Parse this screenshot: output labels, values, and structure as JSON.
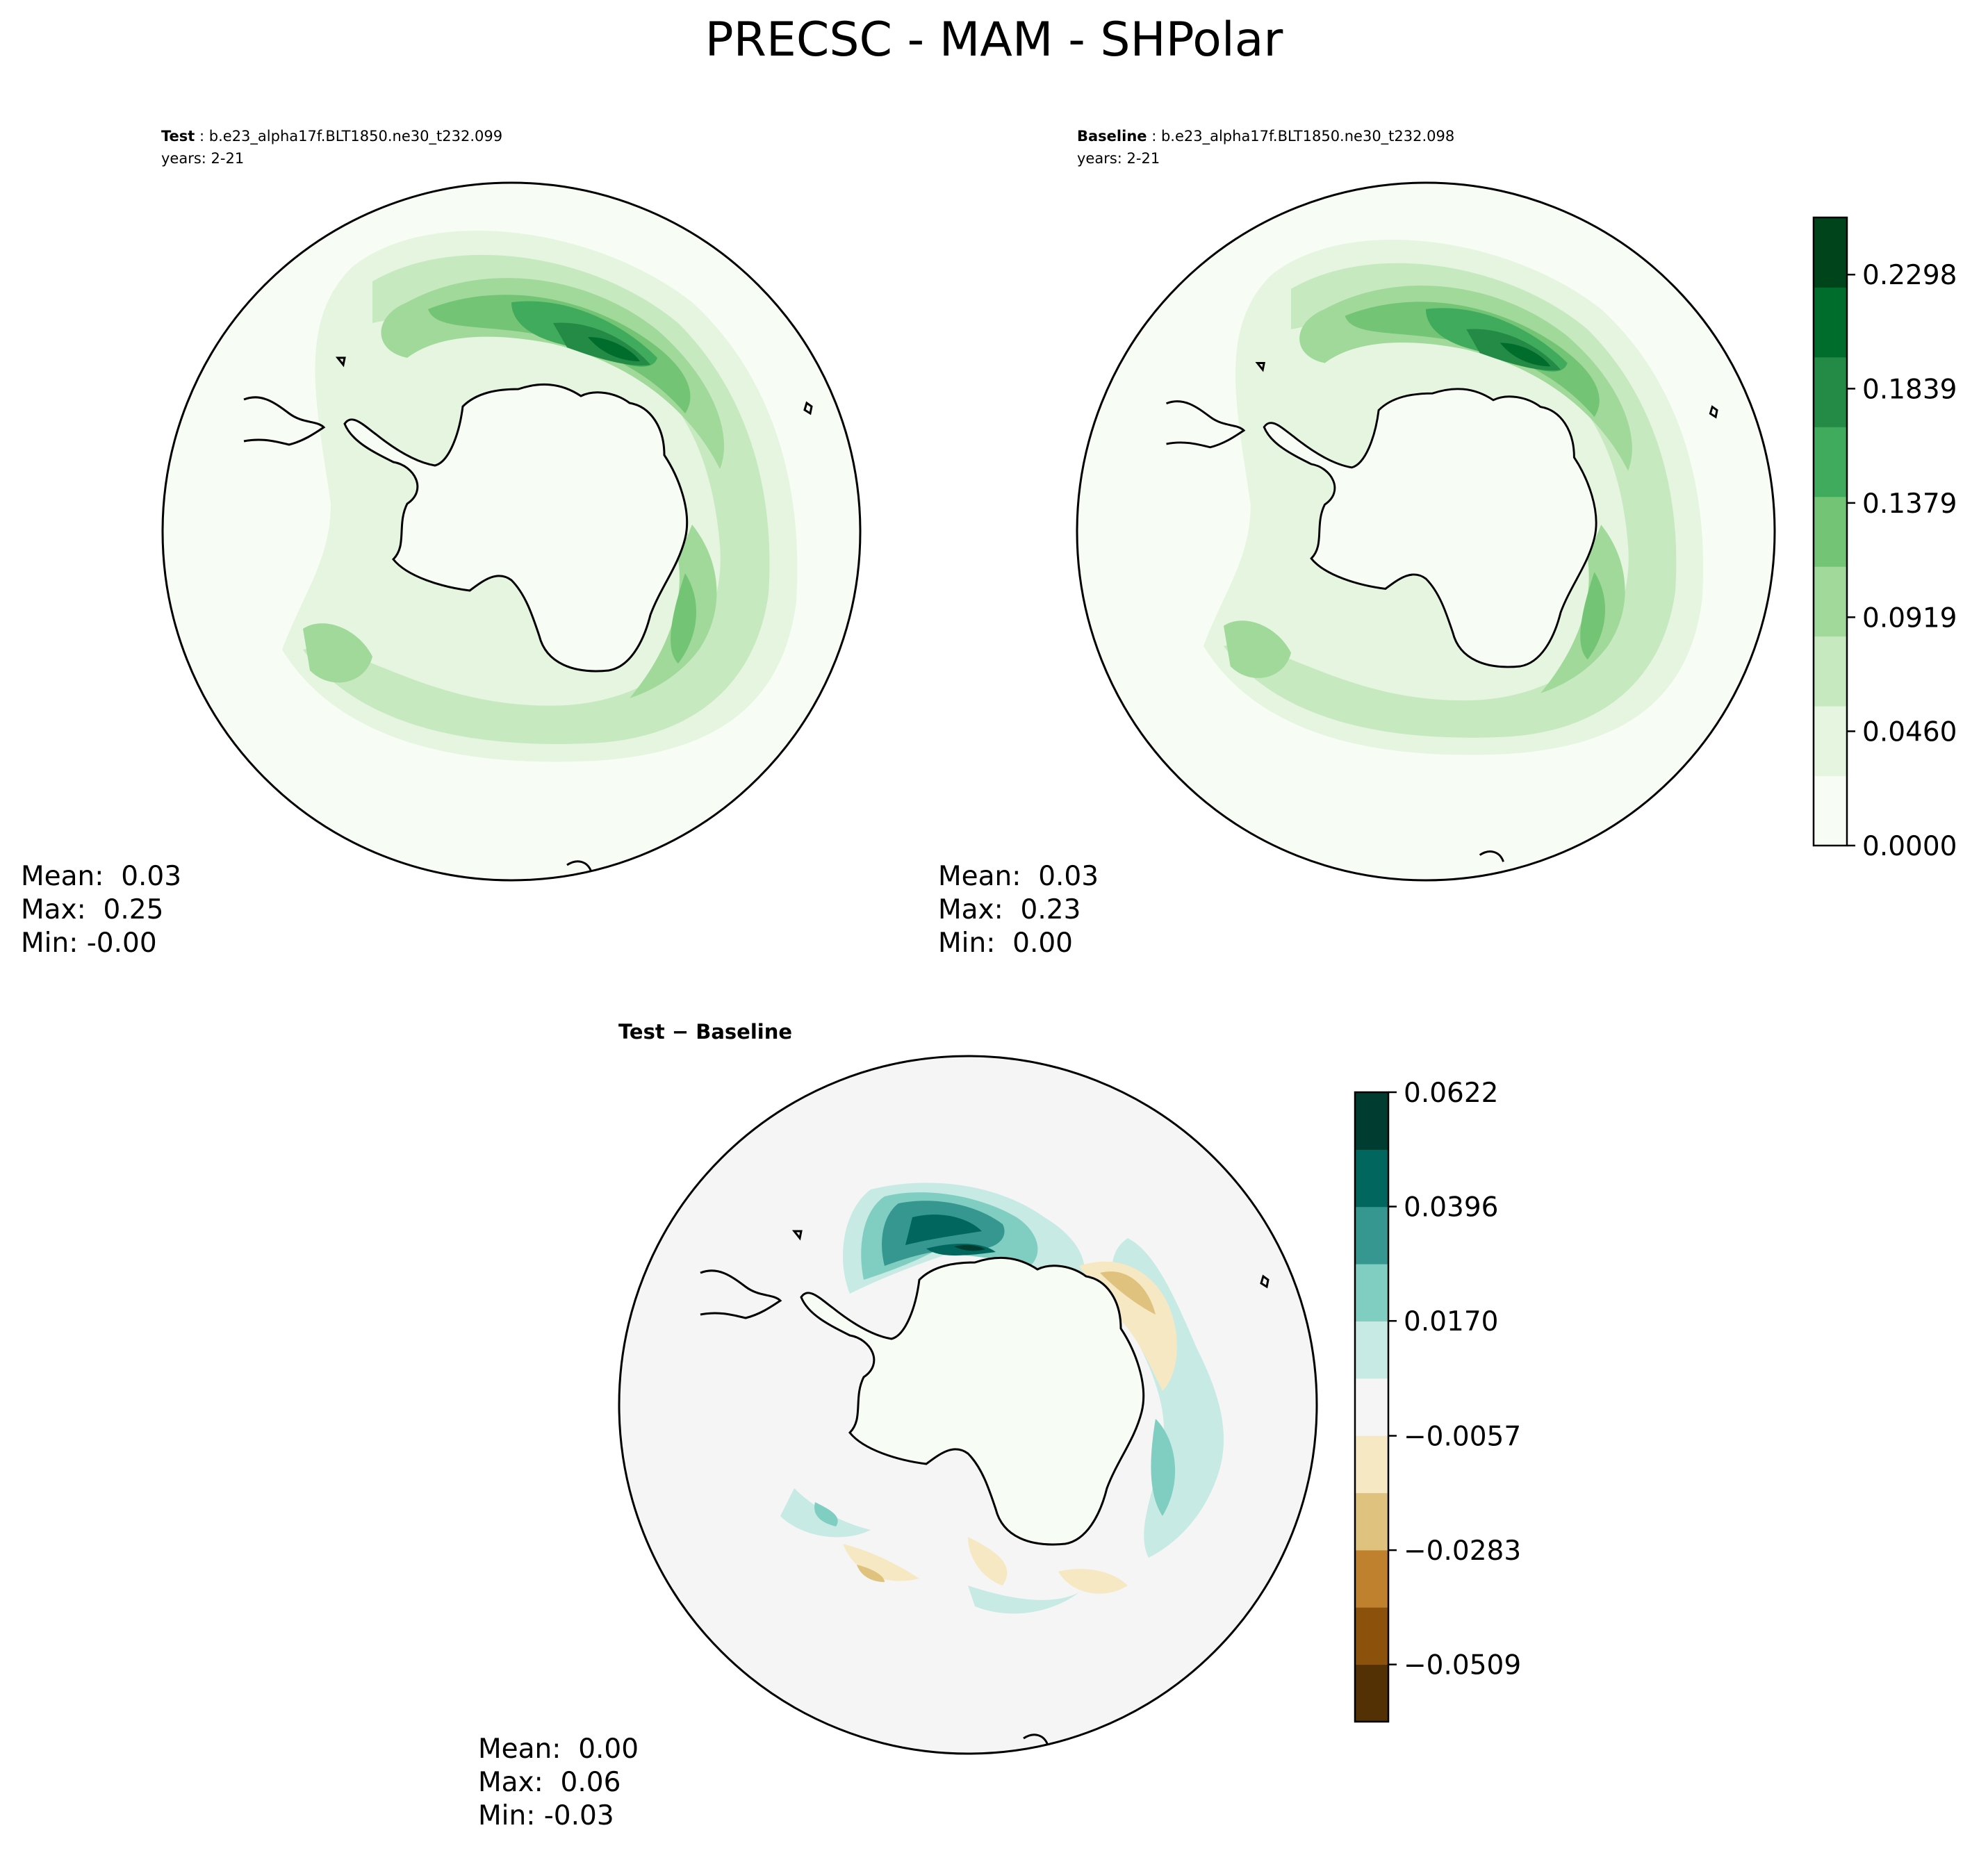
{
  "figure": {
    "title": "PRECSC - MAM - SHPolar"
  },
  "panels": [
    {
      "id": "test",
      "label": "Test",
      "case": "b.e23_alpha17f.BLT1850.ne30_t232.099",
      "years": "years: 2-21",
      "stats": {
        "mean": "Mean:  0.03",
        "max": "Max:  0.25",
        "min": "Min: -0.00"
      }
    },
    {
      "id": "baseline",
      "label": "Baseline",
      "case": "b.e23_alpha17f.BLT1850.ne30_t232.098",
      "years": "years: 2-21",
      "stats": {
        "mean": "Mean:  0.03",
        "max": "Max:  0.23",
        "min": "Min:  0.00"
      }
    },
    {
      "id": "diff",
      "label": "Test − Baseline",
      "stats": {
        "mean": "Mean:  0.00",
        "max": "Max:  0.06",
        "min": "Min: -0.03"
      }
    }
  ],
  "chart_data": [
    {
      "type": "heatmap",
      "projection": "south-polar-stereographic",
      "panel": "test",
      "mean": 0.03,
      "max": 0.25,
      "min": -0.0,
      "colorbar": {
        "ticks": [
          "0.0000",
          "0.0460",
          "0.0919",
          "0.1379",
          "0.1839",
          "0.2298"
        ],
        "tick_values": [
          0.0,
          0.046,
          0.0919,
          0.1379,
          0.1839,
          0.2298
        ],
        "range": [
          0.0,
          0.2528
        ],
        "colors": [
          "#f7fcf5",
          "#e5f5e0",
          "#c7e9c0",
          "#a1d99b",
          "#74c476",
          "#41ab5d",
          "#238b45",
          "#006d2c",
          "#00441b"
        ]
      }
    },
    {
      "type": "heatmap",
      "projection": "south-polar-stereographic",
      "panel": "baseline",
      "mean": 0.03,
      "max": 0.23,
      "min": 0.0,
      "colorbar": "shared-with-test"
    },
    {
      "type": "heatmap",
      "projection": "south-polar-stereographic",
      "panel": "diff",
      "mean": 0.0,
      "max": 0.06,
      "min": -0.03,
      "colorbar": {
        "ticks": [
          "0.0622",
          "0.0396",
          "0.0170",
          "−0.0057",
          "−0.0283",
          "−0.0509"
        ],
        "tick_values": [
          0.0622,
          0.0396,
          0.017,
          -0.0057,
          -0.0283,
          -0.0509
        ],
        "range": [
          -0.0622,
          0.0622
        ],
        "colors": [
          "#543005",
          "#8c510a",
          "#bf812d",
          "#dfc27d",
          "#f6e8c3",
          "#f5f5f5",
          "#c7eae5",
          "#80cdc1",
          "#35978f",
          "#01665e",
          "#003c30"
        ]
      }
    }
  ]
}
